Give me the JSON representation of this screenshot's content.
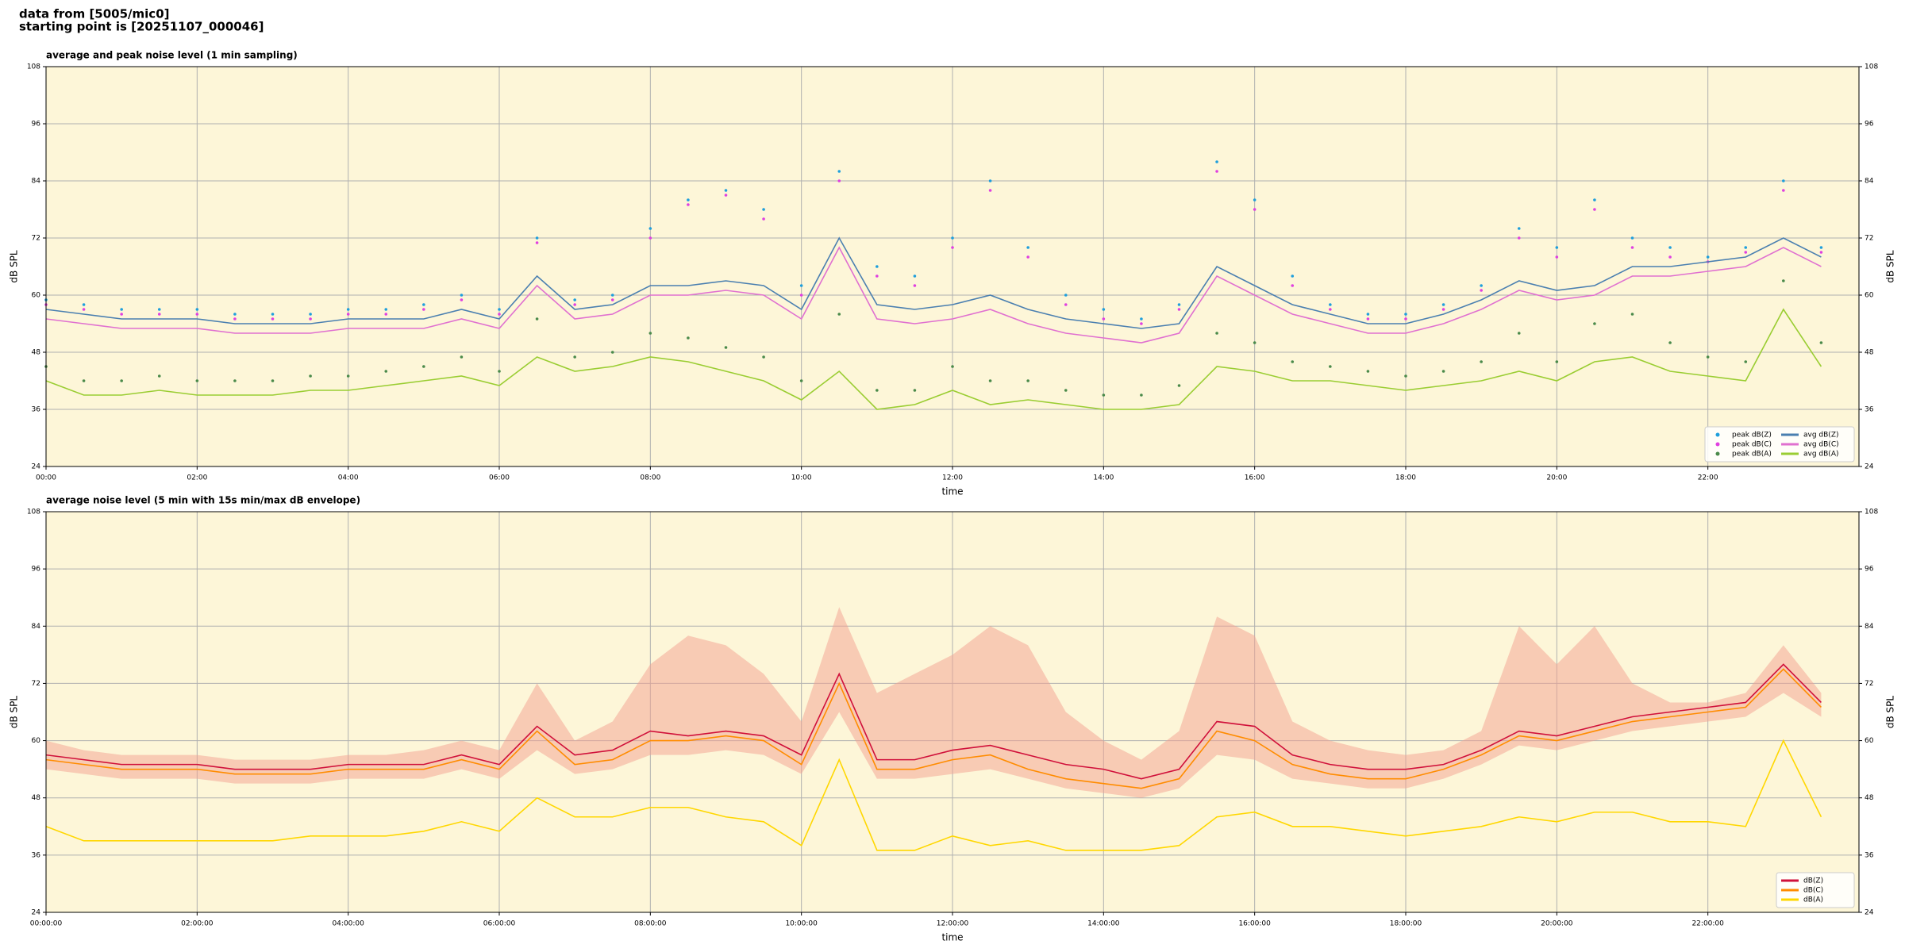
{
  "header": {
    "lines": [
      "data from [5005/mic0]",
      "starting point is [20251107_000046]"
    ]
  },
  "chart_data": [
    {
      "type": "line",
      "title": "average and peak noise level (1 min sampling)",
      "xlabel": "time",
      "ylabel": "dB SPL",
      "xlim": [
        0,
        24
      ],
      "ylim": [
        24,
        108
      ],
      "yticks": [
        24,
        36,
        48,
        60,
        72,
        84,
        96,
        108
      ],
      "xticks": [
        {
          "value": 0,
          "label": "00:00"
        },
        {
          "value": 2,
          "label": "02:00"
        },
        {
          "value": 4,
          "label": "04:00"
        },
        {
          "value": 6,
          "label": "06:00"
        },
        {
          "value": 8,
          "label": "08:00"
        },
        {
          "value": 10,
          "label": "10:00"
        },
        {
          "value": 12,
          "label": "12:00"
        },
        {
          "value": 14,
          "label": "14:00"
        },
        {
          "value": 16,
          "label": "16:00"
        },
        {
          "value": 18,
          "label": "18:00"
        },
        {
          "value": 20,
          "label": "20:00"
        },
        {
          "value": 22,
          "label": "22:00"
        }
      ],
      "grid": true,
      "legend": "lower right",
      "legend_columns": 2,
      "x": [
        0,
        0.5,
        1,
        1.5,
        2,
        2.5,
        3,
        3.5,
        4,
        4.5,
        5,
        5.5,
        6,
        6.5,
        7,
        7.5,
        8,
        8.5,
        9,
        9.5,
        10,
        10.5,
        11,
        11.5,
        12,
        12.5,
        13,
        13.5,
        14,
        14.5,
        15,
        15.5,
        16,
        16.5,
        17,
        17.5,
        18,
        18.5,
        19,
        19.5,
        20,
        20.5,
        21,
        21.5,
        22,
        22.5,
        23,
        23.5
      ],
      "series": [
        {
          "name": "peak dB(Z)",
          "kind": "scatter",
          "color": "#1f9fdc",
          "values": [
            59,
            58,
            57,
            57,
            57,
            56,
            56,
            56,
            57,
            57,
            58,
            60,
            57,
            72,
            59,
            60,
            74,
            80,
            82,
            78,
            62,
            86,
            66,
            64,
            72,
            84,
            70,
            60,
            57,
            55,
            58,
            88,
            80,
            64,
            58,
            56,
            56,
            58,
            62,
            74,
            70,
            80,
            72,
            70,
            68,
            70,
            84,
            70
          ]
        },
        {
          "name": "peak dB(C)",
          "kind": "scatter",
          "color": "#e040e0",
          "values": [
            58,
            57,
            56,
            56,
            56,
            55,
            55,
            55,
            56,
            56,
            57,
            59,
            56,
            71,
            58,
            59,
            72,
            79,
            81,
            76,
            60,
            84,
            64,
            62,
            70,
            82,
            68,
            58,
            55,
            54,
            57,
            86,
            78,
            62,
            57,
            55,
            55,
            57,
            61,
            72,
            68,
            78,
            70,
            68,
            67,
            69,
            82,
            69
          ]
        },
        {
          "name": "peak dB(A)",
          "kind": "scatter",
          "color": "#4a8a4a",
          "values": [
            45,
            42,
            42,
            43,
            42,
            42,
            42,
            43,
            43,
            44,
            45,
            47,
            44,
            55,
            47,
            48,
            52,
            51,
            49,
            47,
            42,
            56,
            40,
            40,
            45,
            42,
            42,
            40,
            39,
            39,
            41,
            52,
            50,
            46,
            45,
            44,
            43,
            44,
            46,
            52,
            46,
            54,
            56,
            50,
            47,
            46,
            63,
            50
          ]
        },
        {
          "name": "avg dB(Z)",
          "kind": "line",
          "color": "#4a7fb0",
          "values": [
            57,
            56,
            55,
            55,
            55,
            54,
            54,
            54,
            55,
            55,
            55,
            57,
            55,
            64,
            57,
            58,
            62,
            62,
            63,
            62,
            57,
            72,
            58,
            57,
            58,
            60,
            57,
            55,
            54,
            53,
            54,
            66,
            62,
            58,
            56,
            54,
            54,
            56,
            59,
            63,
            61,
            62,
            66,
            66,
            67,
            68,
            72,
            68
          ]
        },
        {
          "name": "avg dB(C)",
          "kind": "line",
          "color": "#e070d0",
          "values": [
            55,
            54,
            53,
            53,
            53,
            52,
            52,
            52,
            53,
            53,
            53,
            55,
            53,
            62,
            55,
            56,
            60,
            60,
            61,
            60,
            55,
            70,
            55,
            54,
            55,
            57,
            54,
            52,
            51,
            50,
            52,
            64,
            60,
            56,
            54,
            52,
            52,
            54,
            57,
            61,
            59,
            60,
            64,
            64,
            65,
            66,
            70,
            66
          ]
        },
        {
          "name": "avg dB(A)",
          "kind": "line",
          "color": "#9acd32",
          "values": [
            42,
            39,
            39,
            40,
            39,
            39,
            39,
            40,
            40,
            41,
            42,
            43,
            41,
            47,
            44,
            45,
            47,
            46,
            44,
            42,
            38,
            44,
            36,
            37,
            40,
            37,
            38,
            37,
            36,
            36,
            37,
            45,
            44,
            42,
            42,
            41,
            40,
            41,
            42,
            44,
            42,
            46,
            47,
            44,
            43,
            42,
            57,
            45
          ]
        }
      ]
    },
    {
      "type": "line",
      "title": "average noise level (5 min with 15s min/max dB envelope)",
      "xlabel": "time",
      "ylabel": "dB SPL",
      "xlim": [
        0,
        24
      ],
      "ylim": [
        24,
        108
      ],
      "yticks": [
        24,
        36,
        48,
        60,
        72,
        84,
        96,
        108
      ],
      "xticks": [
        {
          "value": 0,
          "label": "00:00:00"
        },
        {
          "value": 2,
          "label": "02:00:00"
        },
        {
          "value": 4,
          "label": "04:00:00"
        },
        {
          "value": 6,
          "label": "06:00:00"
        },
        {
          "value": 8,
          "label": "08:00:00"
        },
        {
          "value": 10,
          "label": "10:00:00"
        },
        {
          "value": 12,
          "label": "12:00:00"
        },
        {
          "value": 14,
          "label": "14:00:00"
        },
        {
          "value": 16,
          "label": "16:00:00"
        },
        {
          "value": 18,
          "label": "18:00:00"
        },
        {
          "value": 20,
          "label": "20:00:00"
        },
        {
          "value": 22,
          "label": "22:00:00"
        }
      ],
      "grid": true,
      "legend": "lower right",
      "legend_columns": 1,
      "x": [
        0,
        0.5,
        1,
        1.5,
        2,
        2.5,
        3,
        3.5,
        4,
        4.5,
        5,
        5.5,
        6,
        6.5,
        7,
        7.5,
        8,
        8.5,
        9,
        9.5,
        10,
        10.5,
        11,
        11.5,
        12,
        12.5,
        13,
        13.5,
        14,
        14.5,
        15,
        15.5,
        16,
        16.5,
        17,
        17.5,
        18,
        18.5,
        19,
        19.5,
        20,
        20.5,
        21,
        21.5,
        22,
        22.5,
        23,
        23.5
      ],
      "band": {
        "color": "#f4a090",
        "lower": [
          54,
          53,
          52,
          52,
          52,
          51,
          51,
          51,
          52,
          52,
          52,
          54,
          52,
          58,
          53,
          54,
          57,
          57,
          58,
          57,
          53,
          66,
          52,
          52,
          53,
          54,
          52,
          50,
          49,
          48,
          50,
          57,
          56,
          52,
          51,
          50,
          50,
          52,
          55,
          59,
          58,
          60,
          62,
          63,
          64,
          65,
          70,
          65
        ],
        "upper": [
          60,
          58,
          57,
          57,
          57,
          56,
          56,
          56,
          57,
          57,
          58,
          60,
          58,
          72,
          60,
          64,
          76,
          82,
          80,
          74,
          64,
          88,
          70,
          74,
          78,
          84,
          80,
          66,
          60,
          56,
          62,
          86,
          82,
          64,
          60,
          58,
          57,
          58,
          62,
          84,
          76,
          84,
          72,
          68,
          68,
          70,
          80,
          70
        ]
      },
      "series": [
        {
          "name": "dB(Z)",
          "kind": "line",
          "color": "#d0103a",
          "values": [
            57,
            56,
            55,
            55,
            55,
            54,
            54,
            54,
            55,
            55,
            55,
            57,
            55,
            63,
            57,
            58,
            62,
            61,
            62,
            61,
            57,
            74,
            56,
            56,
            58,
            59,
            57,
            55,
            54,
            52,
            54,
            64,
            63,
            57,
            55,
            54,
            54,
            55,
            58,
            62,
            61,
            63,
            65,
            66,
            67,
            68,
            76,
            68
          ]
        },
        {
          "name": "dB(C)",
          "kind": "line",
          "color": "#ff8c00",
          "values": [
            56,
            55,
            54,
            54,
            54,
            53,
            53,
            53,
            54,
            54,
            54,
            56,
            54,
            62,
            55,
            56,
            60,
            60,
            61,
            60,
            55,
            72,
            54,
            54,
            56,
            57,
            54,
            52,
            51,
            50,
            52,
            62,
            60,
            55,
            53,
            52,
            52,
            54,
            57,
            61,
            60,
            62,
            64,
            65,
            66,
            67,
            75,
            67
          ]
        },
        {
          "name": "dB(A)",
          "kind": "line",
          "color": "#ffd700",
          "values": [
            42,
            39,
            39,
            39,
            39,
            39,
            39,
            40,
            40,
            40,
            41,
            43,
            41,
            48,
            44,
            44,
            46,
            46,
            44,
            43,
            38,
            56,
            37,
            37,
            40,
            38,
            39,
            37,
            37,
            37,
            38,
            44,
            45,
            42,
            42,
            41,
            40,
            41,
            42,
            44,
            43,
            45,
            45,
            43,
            43,
            42,
            60,
            44
          ]
        }
      ]
    }
  ]
}
